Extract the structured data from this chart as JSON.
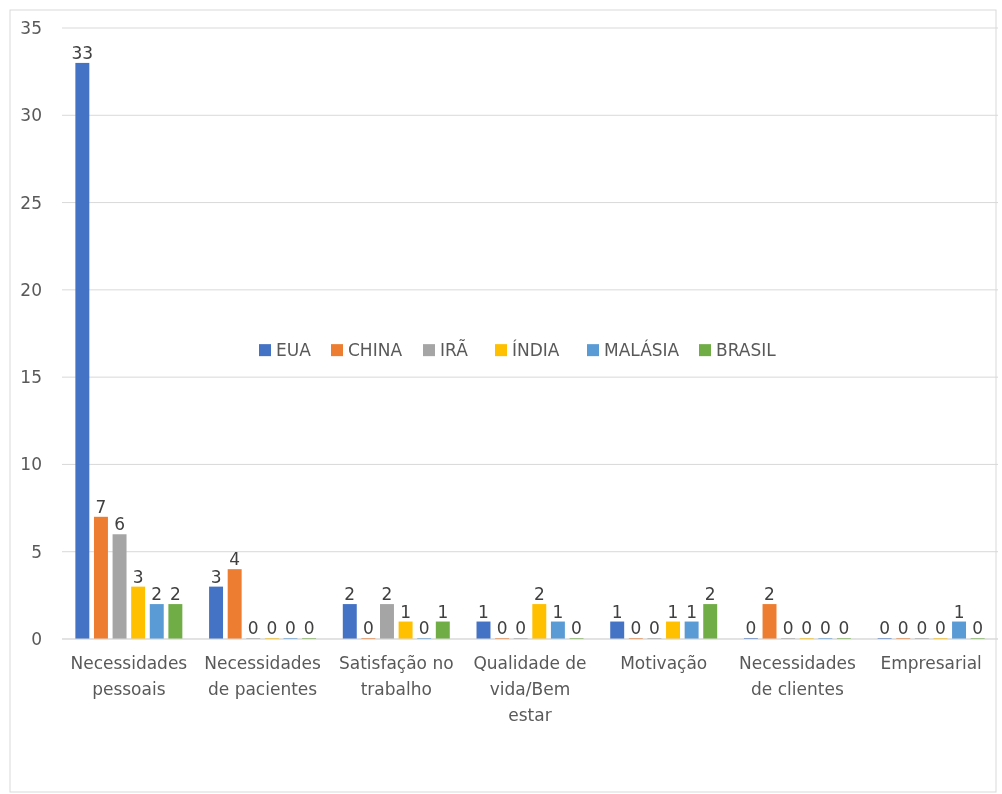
{
  "chart_data": {
    "type": "bar",
    "categories": [
      "Necessidades pessoais",
      "Necessidades de pacientes",
      "Satisfação no trabalho",
      "Qualidade de vida/Bem estar",
      "Motivação",
      "Necessidades de clientes",
      "Empresarial"
    ],
    "series": [
      {
        "name": "EUA",
        "color": "#4472c4",
        "values": [
          33,
          3,
          2,
          1,
          1,
          0,
          0
        ]
      },
      {
        "name": "CHINA",
        "color": "#ed7d31",
        "values": [
          7,
          4,
          0,
          0,
          0,
          2,
          0
        ]
      },
      {
        "name": "IRÃ",
        "color": "#a5a5a5",
        "values": [
          6,
          0,
          2,
          0,
          0,
          0,
          0
        ]
      },
      {
        "name": "ÍNDIA",
        "color": "#ffc000",
        "values": [
          3,
          0,
          1,
          2,
          1,
          0,
          0
        ]
      },
      {
        "name": "MALÁSIA",
        "color": "#5b9bd5",
        "values": [
          2,
          0,
          0,
          1,
          1,
          0,
          1
        ]
      },
      {
        "name": "BRASIL",
        "color": "#70ad47",
        "values": [
          2,
          0,
          1,
          0,
          2,
          0,
          0
        ]
      }
    ],
    "ylim": [
      0,
      35
    ],
    "yticks": [
      0,
      5,
      10,
      15,
      20,
      25,
      30,
      35
    ],
    "grid": "y",
    "legend": "center",
    "data_labels": true
  }
}
